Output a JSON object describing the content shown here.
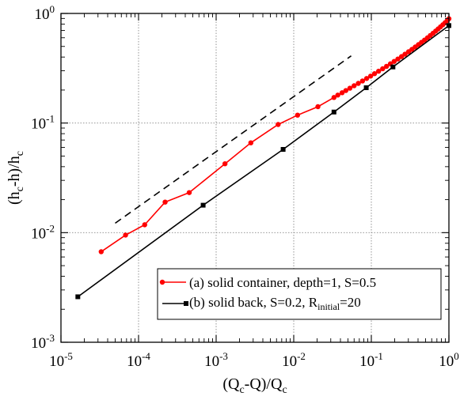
{
  "chart_data": {
    "type": "scatter",
    "x_scale": "log",
    "y_scale": "log",
    "xlim": [
      1e-05,
      1
    ],
    "ylim": [
      0.001,
      1
    ],
    "grid": true,
    "legend_position": "bottom-right",
    "xlabel": {
      "a": "(Q",
      "a_sub": "c",
      "b": "-Q)/Q",
      "b_sub": "c"
    },
    "ylabel": {
      "a": "(h",
      "a_sub": "c",
      "b": "-h)/h",
      "b_sub": "c"
    },
    "x_ticks": [
      {
        "value": 1e-05,
        "base": "10",
        "exp": "-5"
      },
      {
        "value": 0.0001,
        "base": "10",
        "exp": "-4"
      },
      {
        "value": 0.001,
        "base": "10",
        "exp": "-3"
      },
      {
        "value": 0.01,
        "base": "10",
        "exp": "-2"
      },
      {
        "value": 0.1,
        "base": "10",
        "exp": "-1"
      },
      {
        "value": 1,
        "base": "10",
        "exp": "0"
      }
    ],
    "y_ticks": [
      {
        "value": 0.001,
        "base": "10",
        "exp": "-3"
      },
      {
        "value": 0.01,
        "base": "10",
        "exp": "-2"
      },
      {
        "value": 0.1,
        "base": "10",
        "exp": "-1"
      },
      {
        "value": 1,
        "base": "10",
        "exp": "0"
      }
    ],
    "series": [
      {
        "name": "(a) solid container, depth=1, S=0.5",
        "color": "#ff0000",
        "marker": "circle",
        "x": [
          3.3e-05,
          6.8e-05,
          0.00012,
          0.00022,
          0.00045,
          0.0013,
          0.0028,
          0.0063,
          0.0112,
          0.0205,
          0.033,
          0.037,
          0.042,
          0.047,
          0.053,
          0.06,
          0.068,
          0.077,
          0.087,
          0.098,
          0.11,
          0.124,
          0.14,
          0.157,
          0.176,
          0.197,
          0.22,
          0.245,
          0.272,
          0.302,
          0.334,
          0.368,
          0.405,
          0.444,
          0.486,
          0.53,
          0.576,
          0.624,
          0.674,
          0.726,
          0.78,
          0.836,
          0.894,
          0.95,
          1.0
        ],
        "y": [
          0.0067,
          0.0095,
          0.0118,
          0.019,
          0.0232,
          0.0425,
          0.066,
          0.097,
          0.118,
          0.141,
          0.171,
          0.18,
          0.189,
          0.198,
          0.208,
          0.219,
          0.23,
          0.242,
          0.255,
          0.268,
          0.282,
          0.297,
          0.313,
          0.329,
          0.347,
          0.365,
          0.384,
          0.404,
          0.425,
          0.447,
          0.47,
          0.494,
          0.519,
          0.545,
          0.572,
          0.6,
          0.629,
          0.659,
          0.69,
          0.722,
          0.755,
          0.789,
          0.824,
          0.86,
          0.895
        ]
      },
      {
        "name": "(b) solid back, S=0.2, R",
        "name_sub": "initial",
        "name_tail": "=20",
        "color": "#000000",
        "marker": "square",
        "x": [
          1.65e-05,
          0.00068,
          0.0073,
          0.033,
          0.086,
          0.19,
          1.0
        ],
        "y": [
          0.0026,
          0.0178,
          0.0575,
          0.126,
          0.21,
          0.325,
          0.775
        ]
      }
    ],
    "reference_line": {
      "style": "dashed",
      "color": "#000000",
      "x": [
        5e-05,
        0.055
      ],
      "y": [
        0.0122,
        0.41
      ]
    },
    "legend_entries": [
      {
        "text": "(a) solid container, depth=1, S=0.5"
      },
      {
        "text": "(b) solid back, S=0.2, R",
        "sub": "initial",
        "tail": "=20"
      }
    ]
  }
}
